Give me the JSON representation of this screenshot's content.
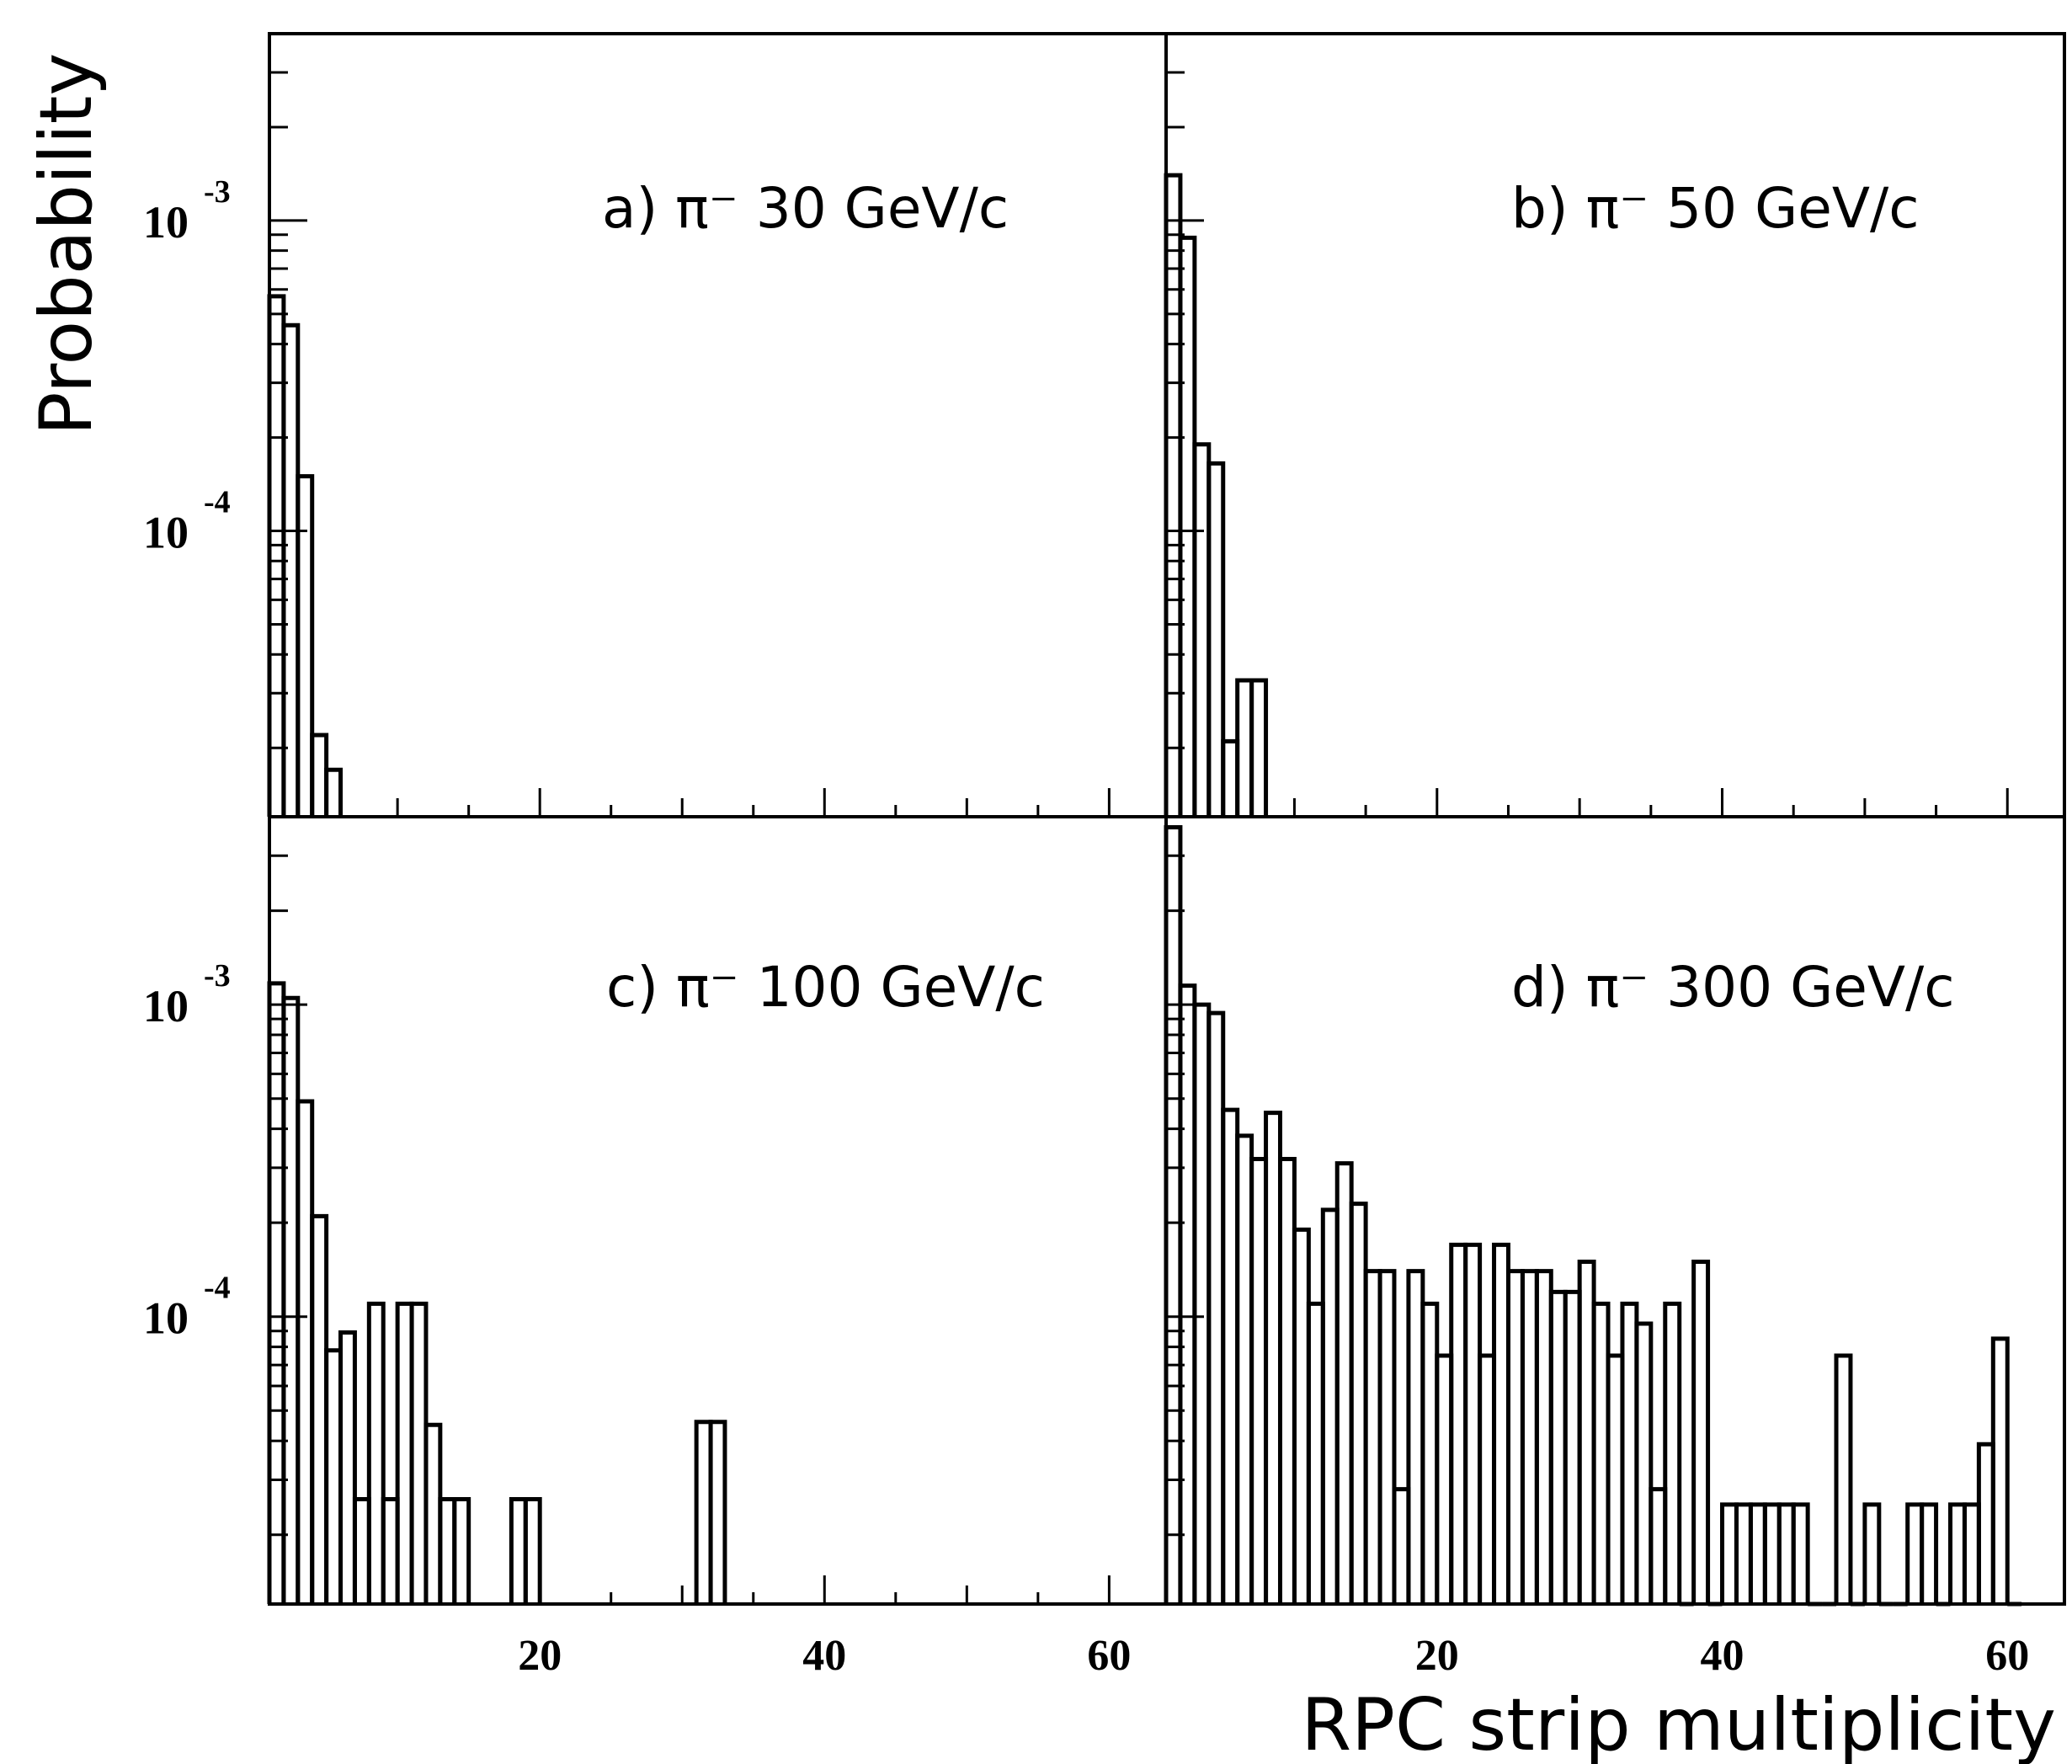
{
  "figure": {
    "ylabel": "Probability",
    "xlabel": "RPC strip multiplicity"
  },
  "chart_data": [
    {
      "type": "histogram",
      "panel": "a",
      "label": "a)  π⁻  30 GeV/c",
      "xlim": [
        1,
        64
      ],
      "yscale": "log",
      "ylim": [
        1.2e-05,
        0.004
      ],
      "xticks": [
        20,
        40,
        60
      ],
      "xtick_labels": [
        "",
        "",
        ""
      ],
      "yticks": [
        0.0001,
        0.001
      ],
      "ytick_labels": [
        {
          "base": "10",
          "exp": "-4"
        },
        {
          "base": "10",
          "exp": "-3"
        }
      ],
      "bins": [
        [
          1,
          2,
          0.00057
        ],
        [
          2,
          3,
          0.00046
        ],
        [
          3,
          4,
          0.00015
        ],
        [
          4,
          5,
          2.2e-05
        ],
        [
          5,
          6,
          1.7e-05
        ]
      ]
    },
    {
      "type": "histogram",
      "panel": "b",
      "label": "b)  π⁻  50 GeV/c",
      "xlim": [
        1,
        64
      ],
      "yscale": "log",
      "ylim": [
        1.2e-05,
        0.004
      ],
      "xticks": [
        20,
        40,
        60
      ],
      "xtick_labels": [
        "",
        "",
        ""
      ],
      "yticks": [],
      "ytick_labels": [],
      "bins": [
        [
          1,
          2,
          0.0014
        ],
        [
          2,
          3,
          0.00088
        ],
        [
          3,
          4,
          0.00019
        ],
        [
          4,
          5,
          0.000165
        ],
        [
          5,
          6,
          2.1e-05
        ],
        [
          6,
          7,
          3.3e-05
        ],
        [
          7,
          8,
          3.3e-05
        ]
      ]
    },
    {
      "type": "histogram",
      "panel": "c",
      "label": "c)  π⁻  100 GeV/c",
      "xlim": [
        1,
        64
      ],
      "yscale": "log",
      "ylim": [
        1.2e-05,
        0.004
      ],
      "xticks": [
        20,
        40,
        60
      ],
      "xtick_labels": [
        "20",
        "40",
        "60"
      ],
      "yticks": [
        0.0001,
        0.001
      ],
      "ytick_labels": [
        {
          "base": "10",
          "exp": "-4"
        },
        {
          "base": "10",
          "exp": "-3"
        }
      ],
      "bins": [
        [
          1,
          2,
          0.00117
        ],
        [
          2,
          3,
          0.00105
        ],
        [
          3,
          4,
          0.00049
        ],
        [
          4,
          5,
          0.00021
        ],
        [
          5,
          6,
          7.8e-05
        ],
        [
          6,
          7,
          8.9e-05
        ],
        [
          7,
          8,
          2.6e-05
        ],
        [
          8,
          9,
          0.00011
        ],
        [
          9,
          10,
          2.6e-05
        ],
        [
          10,
          11,
          0.00011
        ],
        [
          11,
          12,
          0.00011
        ],
        [
          12,
          13,
          4.5e-05
        ],
        [
          13,
          14,
          2.6e-05
        ],
        [
          14,
          15,
          2.6e-05
        ],
        [
          18,
          19,
          2.6e-05
        ],
        [
          19,
          20,
          2.6e-05
        ],
        [
          31,
          32,
          4.6e-05
        ],
        [
          32,
          33,
          4.6e-05
        ]
      ]
    },
    {
      "type": "histogram",
      "panel": "d",
      "label": "d)  π⁻  300 GeV/c",
      "xlim": [
        1,
        64
      ],
      "yscale": "log",
      "ylim": [
        1.2e-05,
        0.004
      ],
      "xticks": [
        20,
        40,
        60
      ],
      "xtick_labels": [
        "20",
        "40",
        "60"
      ],
      "yticks": [],
      "ytick_labels": [],
      "bins": [
        [
          1,
          2,
          0.0037
        ],
        [
          2,
          3,
          0.00115
        ],
        [
          3,
          4,
          0.001
        ],
        [
          4,
          5,
          0.00094
        ],
        [
          5,
          6,
          0.00046
        ],
        [
          6,
          7,
          0.00038
        ],
        [
          7,
          8,
          0.00032
        ],
        [
          8,
          9,
          0.00045
        ],
        [
          9,
          10,
          0.00032
        ],
        [
          10,
          11,
          0.00019
        ],
        [
          11,
          12,
          0.00011
        ],
        [
          12,
          13,
          0.00022
        ],
        [
          13,
          14,
          0.00031
        ],
        [
          14,
          15,
          0.00023
        ],
        [
          15,
          16,
          0.00014
        ],
        [
          16,
          17,
          0.00014
        ],
        [
          17,
          18,
          2.8e-05
        ],
        [
          18,
          19,
          0.00014
        ],
        [
          19,
          20,
          0.00011
        ],
        [
          20,
          21,
          7.5e-05
        ],
        [
          21,
          22,
          0.00017
        ],
        [
          22,
          23,
          0.00017
        ],
        [
          23,
          24,
          7.5e-05
        ],
        [
          24,
          25,
          0.00017
        ],
        [
          25,
          26,
          0.00014
        ],
        [
          26,
          27,
          0.00014
        ],
        [
          27,
          28,
          0.00014
        ],
        [
          28,
          29,
          0.00012
        ],
        [
          29,
          30,
          0.00012
        ],
        [
          30,
          31,
          0.00015
        ],
        [
          31,
          32,
          0.00011
        ],
        [
          32,
          33,
          7.5e-05
        ],
        [
          33,
          34,
          0.00011
        ],
        [
          34,
          35,
          9.5e-05
        ],
        [
          35,
          36,
          2.8e-05
        ],
        [
          36,
          37,
          0.00011
        ],
        [
          37,
          38,
          1e-05
        ],
        [
          38,
          39,
          0.00015
        ],
        [
          39,
          40,
          1e-05
        ],
        [
          40,
          41,
          2.5e-05
        ],
        [
          41,
          42,
          2.5e-05
        ],
        [
          42,
          43,
          2.5e-05
        ],
        [
          43,
          44,
          2.5e-05
        ],
        [
          44,
          45,
          2.5e-05
        ],
        [
          45,
          46,
          2.5e-05
        ],
        [
          46,
          47,
          1e-05
        ],
        [
          47,
          48,
          1e-05
        ],
        [
          48,
          49,
          7.5e-05
        ],
        [
          49,
          50,
          1e-05
        ],
        [
          50,
          51,
          2.5e-05
        ],
        [
          51,
          52,
          1e-05
        ],
        [
          52,
          53,
          1e-05
        ],
        [
          53,
          54,
          2.5e-05
        ],
        [
          54,
          55,
          2.5e-05
        ],
        [
          55,
          56,
          1e-05
        ],
        [
          56,
          57,
          2.5e-05
        ],
        [
          57,
          58,
          2.5e-05
        ],
        [
          58,
          59,
          3.9e-05
        ],
        [
          59,
          60,
          8.5e-05
        ],
        [
          60,
          61,
          1e-05
        ]
      ]
    }
  ]
}
